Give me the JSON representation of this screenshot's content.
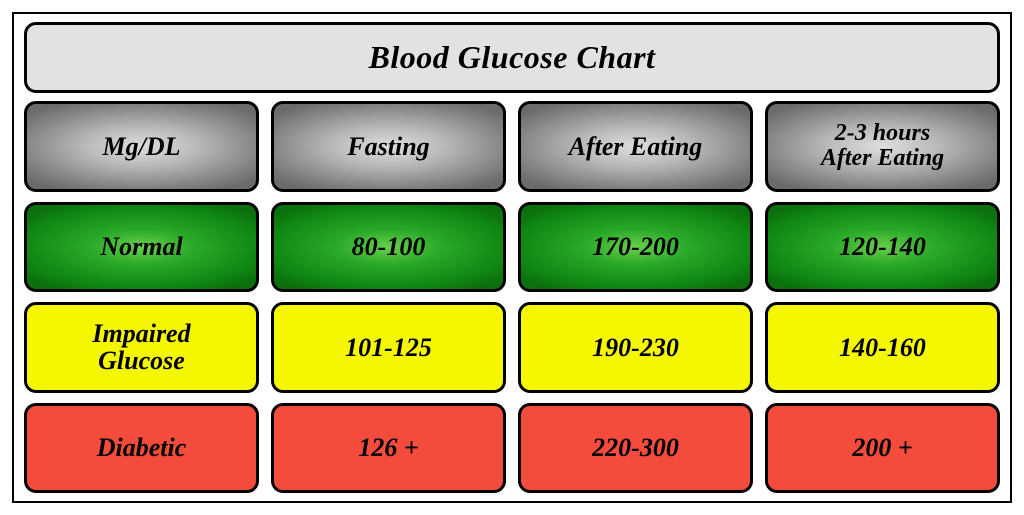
{
  "chart": {
    "type": "table",
    "title": "Blood Glucose Chart",
    "title_fontsize": 32,
    "title_bg": "#e2e2e2",
    "border_color": "#000000",
    "border_width": 3,
    "border_radius": 12,
    "cell_font": "Georgia, serif",
    "cell_fontsize": 26,
    "cell_fontstyle": "italic",
    "cell_fontweight": "bold",
    "gap_row": 10,
    "gap_col": 12,
    "columns": [
      "Mg/DL",
      "Fasting",
      "After Eating",
      "2-3 hours After Eating"
    ],
    "rows": [
      {
        "key": "normal",
        "label": "Normal",
        "values": [
          "80-100",
          "170-200",
          "120-140"
        ]
      },
      {
        "key": "impaired",
        "label": "Impaired Glucose",
        "values": [
          "101-125",
          "190-230",
          "140-160"
        ]
      },
      {
        "key": "diabetic",
        "label": "Diabetic",
        "values": [
          "126 +",
          "220-300",
          "200 +"
        ]
      }
    ],
    "colors": {
      "header_gradient": {
        "center": "#dedede",
        "mid": "#bcbcbc",
        "outer": "#838383",
        "edge": "#6b6b6b"
      },
      "normal_gradient": {
        "center": "#69cf4c",
        "mid": "#2aa928",
        "outer": "#0f8712",
        "edge": "#0b6f0e"
      },
      "impaired_flat": "#f4f700",
      "diabetic_flat": "#f34c3d",
      "text": "#000000",
      "background": "#ffffff"
    }
  }
}
